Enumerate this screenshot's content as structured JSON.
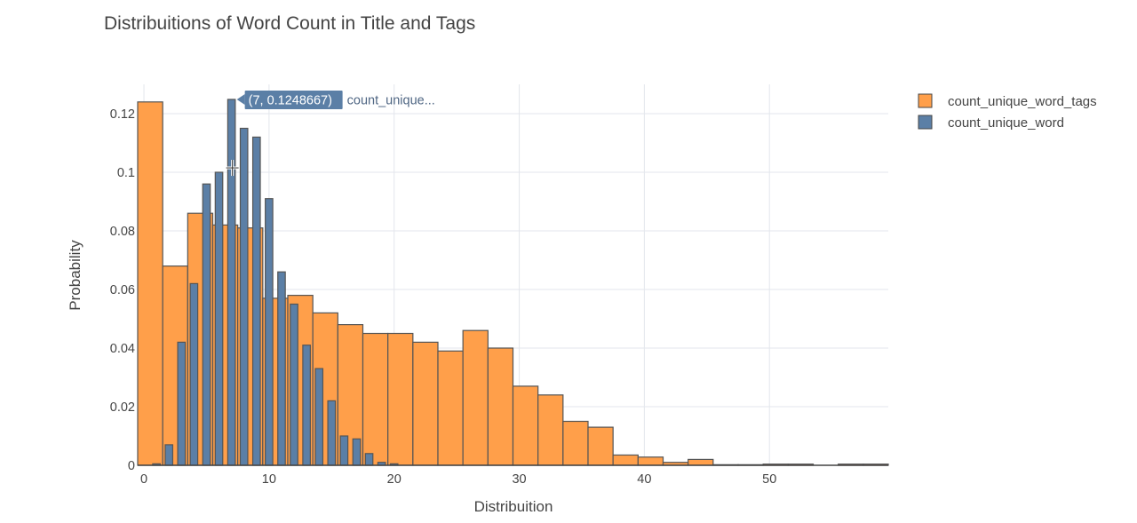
{
  "chart_data": {
    "type": "bar",
    "title": "Distribuitions of Word Count in Title and Tags",
    "xlabel": "Distribuition",
    "ylabel": "Probability",
    "xlim": [
      -0.5,
      59.5
    ],
    "ylim": [
      0,
      0.13
    ],
    "x_ticks": [
      0,
      10,
      20,
      30,
      40,
      50
    ],
    "y_ticks": [
      0,
      0.02,
      0.04,
      0.06,
      0.08,
      0.1,
      0.12
    ],
    "y_tick_labels": [
      "0",
      "0.02",
      "0.04",
      "0.06",
      "0.08",
      "0.1",
      "0.12"
    ],
    "grid": true,
    "legend_position": "top-right",
    "series": [
      {
        "name": "count_unique_word_tags",
        "color": "#FF9F4A",
        "bin_width": 2,
        "bins": [
          {
            "x0": -0.5,
            "x1": 1.5,
            "value": 0.124
          },
          {
            "x0": 1.5,
            "x1": 3.5,
            "value": 0.068
          },
          {
            "x0": 3.5,
            "x1": 5.5,
            "value": 0.086
          },
          {
            "x0": 5.5,
            "x1": 7.5,
            "value": 0.082
          },
          {
            "x0": 7.5,
            "x1": 9.5,
            "value": 0.081
          },
          {
            "x0": 9.5,
            "x1": 11.5,
            "value": 0.057
          },
          {
            "x0": 11.5,
            "x1": 13.5,
            "value": 0.058
          },
          {
            "x0": 13.5,
            "x1": 15.5,
            "value": 0.052
          },
          {
            "x0": 15.5,
            "x1": 17.5,
            "value": 0.048
          },
          {
            "x0": 17.5,
            "x1": 19.5,
            "value": 0.045
          },
          {
            "x0": 19.5,
            "x1": 21.5,
            "value": 0.045
          },
          {
            "x0": 21.5,
            "x1": 23.5,
            "value": 0.042
          },
          {
            "x0": 23.5,
            "x1": 25.5,
            "value": 0.039
          },
          {
            "x0": 25.5,
            "x1": 27.5,
            "value": 0.046
          },
          {
            "x0": 27.5,
            "x1": 29.5,
            "value": 0.04
          },
          {
            "x0": 29.5,
            "x1": 31.5,
            "value": 0.027
          },
          {
            "x0": 31.5,
            "x1": 33.5,
            "value": 0.024
          },
          {
            "x0": 33.5,
            "x1": 35.5,
            "value": 0.015
          },
          {
            "x0": 35.5,
            "x1": 37.5,
            "value": 0.013
          },
          {
            "x0": 37.5,
            "x1": 39.5,
            "value": 0.0035
          },
          {
            "x0": 39.5,
            "x1": 41.5,
            "value": 0.0028
          },
          {
            "x0": 41.5,
            "x1": 43.5,
            "value": 0.001
          },
          {
            "x0": 43.5,
            "x1": 45.5,
            "value": 0.002
          },
          {
            "x0": 45.5,
            "x1": 47.5,
            "value": 0.0002
          },
          {
            "x0": 47.5,
            "x1": 49.5,
            "value": 0.0002
          },
          {
            "x0": 49.5,
            "x1": 51.5,
            "value": 0.0004
          },
          {
            "x0": 51.5,
            "x1": 53.5,
            "value": 0.0004
          },
          {
            "x0": 55.5,
            "x1": 57.5,
            "value": 0.0004
          },
          {
            "x0": 57.5,
            "x1": 59.5,
            "value": 0.0004
          }
        ]
      },
      {
        "name": "count_unique_word",
        "color": "#5B7FA6",
        "bin_width": 0.6,
        "bins": [
          {
            "x": 1,
            "value": 0.0005
          },
          {
            "x": 2,
            "value": 0.007
          },
          {
            "x": 3,
            "value": 0.042
          },
          {
            "x": 4,
            "value": 0.062
          },
          {
            "x": 5,
            "value": 0.096
          },
          {
            "x": 6,
            "value": 0.1
          },
          {
            "x": 7,
            "value": 0.1248667
          },
          {
            "x": 8,
            "value": 0.115
          },
          {
            "x": 9,
            "value": 0.112
          },
          {
            "x": 10,
            "value": 0.091
          },
          {
            "x": 11,
            "value": 0.066
          },
          {
            "x": 12,
            "value": 0.055
          },
          {
            "x": 13,
            "value": 0.041
          },
          {
            "x": 14,
            "value": 0.033
          },
          {
            "x": 15,
            "value": 0.022
          },
          {
            "x": 16,
            "value": 0.01
          },
          {
            "x": 17,
            "value": 0.009
          },
          {
            "x": 18,
            "value": 0.004
          },
          {
            "x": 19,
            "value": 0.001
          },
          {
            "x": 20,
            "value": 0.0005
          }
        ]
      }
    ],
    "hover": {
      "x": 7,
      "y": 0.1248667,
      "label": "(7, 0.1248667)",
      "series_label": "count_unique..."
    }
  }
}
